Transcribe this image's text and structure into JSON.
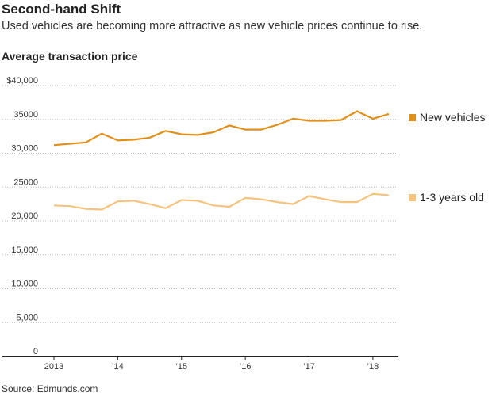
{
  "title": "Second-hand Shift",
  "subtitle": "Used vehicles are becoming more attractive as new vehicle prices continue to rise.",
  "source": "Source: Edmunds.com",
  "chart_data": {
    "type": "line",
    "title": "Average transaction price",
    "xlabel": "",
    "ylabel": "",
    "ylim": [
      0,
      40000
    ],
    "xlim": [
      2013,
      2018.35
    ],
    "y_ticks": [
      {
        "value": 0,
        "label": "0"
      },
      {
        "value": 5000,
        "label": "5,000"
      },
      {
        "value": 10000,
        "label": "10,000"
      },
      {
        "value": 15000,
        "label": "15,000"
      },
      {
        "value": 20000,
        "label": "20,000"
      },
      {
        "value": 25000,
        "label": "25000"
      },
      {
        "value": 30000,
        "label": "30,000"
      },
      {
        "value": 35000,
        "label": "35000"
      },
      {
        "value": 40000,
        "label": "$40,000"
      }
    ],
    "x_ticks": [
      {
        "value": 2013,
        "label": "2013"
      },
      {
        "value": 2014,
        "label": "’14"
      },
      {
        "value": 2015,
        "label": "’15"
      },
      {
        "value": 2016,
        "label": "’16"
      },
      {
        "value": 2017,
        "label": "’17"
      },
      {
        "value": 2018,
        "label": "’18"
      }
    ],
    "grid": true,
    "legend": "right, at line ends",
    "x": [
      2013.0,
      2013.25,
      2013.5,
      2013.75,
      2014.0,
      2014.25,
      2014.5,
      2014.75,
      2015.0,
      2015.25,
      2015.5,
      2015.75,
      2016.0,
      2016.25,
      2016.5,
      2016.75,
      2017.0,
      2017.25,
      2017.5,
      2017.75,
      2018.0,
      2018.25
    ],
    "series": [
      {
        "name": "New vehicles",
        "color": "#e08f1b",
        "values": [
          31200,
          31400,
          31600,
          32900,
          31900,
          32000,
          32300,
          33300,
          32800,
          32700,
          33100,
          34100,
          33500,
          33500,
          34200,
          35100,
          34800,
          34800,
          34900,
          36200,
          35100,
          35800
        ]
      },
      {
        "name": "1-3 years old",
        "color": "#f6c37e",
        "values": [
          22300,
          22200,
          21800,
          21700,
          22900,
          23000,
          22500,
          21900,
          23100,
          23000,
          22300,
          22100,
          23400,
          23200,
          22800,
          22500,
          23700,
          23200,
          22800,
          22800,
          24000,
          23800
        ]
      }
    ]
  }
}
